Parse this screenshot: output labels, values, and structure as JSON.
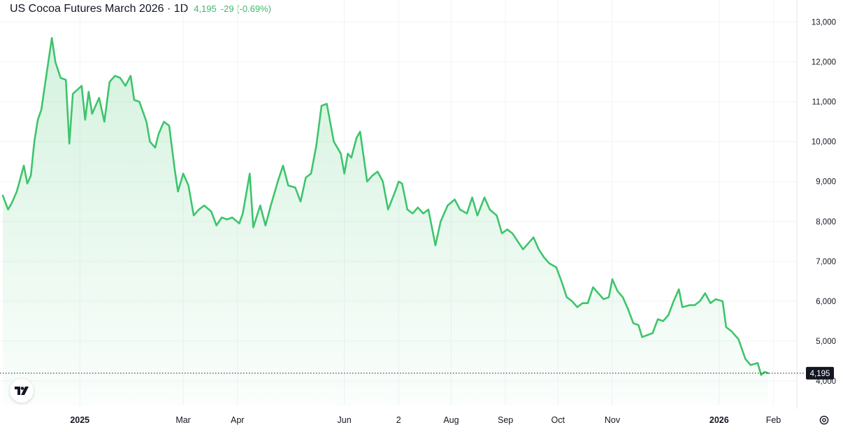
{
  "header": {
    "title": "US Cocoa Futures March 2026 · 1D",
    "price": "4,195",
    "change": "-29 (-0.69%)"
  },
  "colors": {
    "line": "#3dc56b",
    "text": "#131722",
    "grid": "#f0f3fa",
    "last_label_bg": "#131722"
  },
  "icons": {
    "logo": "tradingview-logo-icon",
    "settings": "gear-icon"
  },
  "chart_data": {
    "type": "area",
    "title": "US Cocoa Futures March 2026 · 1D",
    "xlabel": "",
    "ylabel": "",
    "ylim": [
      3900,
      13200
    ],
    "y_ticks": [
      "13,000",
      "12,000",
      "11,000",
      "10,000",
      "9,000",
      "8,000",
      "7,000",
      "6,000",
      "5,000",
      "4,000"
    ],
    "y_tick_values": [
      13000,
      12000,
      11000,
      10000,
      9000,
      8000,
      7000,
      6000,
      5000,
      4000
    ],
    "x_ticks": [
      {
        "label": "2025",
        "date": "2025-01-01",
        "bold": true
      },
      {
        "label": "Mar",
        "date": "2025-03-01",
        "bold": false
      },
      {
        "label": "Apr",
        "date": "2025-04-01",
        "bold": false
      },
      {
        "label": "Jun",
        "date": "2025-06-01",
        "bold": false
      },
      {
        "label": "2",
        "date": "2025-07-02",
        "bold": false
      },
      {
        "label": "Aug",
        "date": "2025-08-01",
        "bold": false
      },
      {
        "label": "Sep",
        "date": "2025-09-01",
        "bold": false
      },
      {
        "label": "Oct",
        "date": "2025-10-01",
        "bold": false
      },
      {
        "label": "Nov",
        "date": "2025-11-01",
        "bold": false
      },
      {
        "label": "2026",
        "date": "2026-01-01",
        "bold": true
      },
      {
        "label": "Feb",
        "date": "2026-02-01",
        "bold": false
      }
    ],
    "x_range": [
      "2024-11-18",
      "2026-02-07"
    ],
    "last_value": 4195,
    "last_value_label": "4,195",
    "grid": true,
    "series": [
      {
        "name": "",
        "points": [
          [
            "2024-11-18",
            8650
          ],
          [
            "2024-11-21",
            8300
          ],
          [
            "2024-11-23",
            8450
          ],
          [
            "2024-11-26",
            8750
          ],
          [
            "2024-11-30",
            9400
          ],
          [
            "2024-12-02",
            8950
          ],
          [
            "2024-12-04",
            9150
          ],
          [
            "2024-12-06",
            10000
          ],
          [
            "2024-12-08",
            10550
          ],
          [
            "2024-12-10",
            10800
          ],
          [
            "2024-12-13",
            11700
          ],
          [
            "2024-12-16",
            12600
          ],
          [
            "2024-12-18",
            12000
          ],
          [
            "2024-12-21",
            11600
          ],
          [
            "2024-12-24",
            11550
          ],
          [
            "2024-12-26",
            9950
          ],
          [
            "2024-12-28",
            11200
          ],
          [
            "2025-01-02",
            11400
          ],
          [
            "2025-01-04",
            10550
          ],
          [
            "2025-01-06",
            11250
          ],
          [
            "2025-01-08",
            10700
          ],
          [
            "2025-01-12",
            11100
          ],
          [
            "2025-01-15",
            10500
          ],
          [
            "2025-01-18",
            11500
          ],
          [
            "2025-01-21",
            11650
          ],
          [
            "2025-01-24",
            11600
          ],
          [
            "2025-01-27",
            11400
          ],
          [
            "2025-01-30",
            11650
          ],
          [
            "2025-02-01",
            11050
          ],
          [
            "2025-02-04",
            11000
          ],
          [
            "2025-02-08",
            10500
          ],
          [
            "2025-02-10",
            10000
          ],
          [
            "2025-02-13",
            9850
          ],
          [
            "2025-02-15",
            10200
          ],
          [
            "2025-02-18",
            10500
          ],
          [
            "2025-02-21",
            10400
          ],
          [
            "2025-02-24",
            9350
          ],
          [
            "2025-02-26",
            8750
          ],
          [
            "2025-03-01",
            9200
          ],
          [
            "2025-03-04",
            8900
          ],
          [
            "2025-03-07",
            8150
          ],
          [
            "2025-03-10",
            8300
          ],
          [
            "2025-03-13",
            8400
          ],
          [
            "2025-03-17",
            8250
          ],
          [
            "2025-03-20",
            7900
          ],
          [
            "2025-03-23",
            8100
          ],
          [
            "2025-03-26",
            8050
          ],
          [
            "2025-03-29",
            8100
          ],
          [
            "2025-04-02",
            7950
          ],
          [
            "2025-04-04",
            8200
          ],
          [
            "2025-04-07",
            8950
          ],
          [
            "2025-04-08",
            9200
          ],
          [
            "2025-04-10",
            7850
          ],
          [
            "2025-04-14",
            8400
          ],
          [
            "2025-04-17",
            7900
          ],
          [
            "2025-04-20",
            8400
          ],
          [
            "2025-04-24",
            9000
          ],
          [
            "2025-04-27",
            9400
          ],
          [
            "2025-04-30",
            8900
          ],
          [
            "2025-05-04",
            8850
          ],
          [
            "2025-05-07",
            8500
          ],
          [
            "2025-05-10",
            9100
          ],
          [
            "2025-05-13",
            9200
          ],
          [
            "2025-05-16",
            9900
          ],
          [
            "2025-05-19",
            10900
          ],
          [
            "2025-05-22",
            10950
          ],
          [
            "2025-05-26",
            10000
          ],
          [
            "2025-05-30",
            9700
          ],
          [
            "2025-06-01",
            9200
          ],
          [
            "2025-06-03",
            9700
          ],
          [
            "2025-06-05",
            9600
          ],
          [
            "2025-06-08",
            10100
          ],
          [
            "2025-06-10",
            10250
          ],
          [
            "2025-06-14",
            9000
          ],
          [
            "2025-06-17",
            9150
          ],
          [
            "2025-06-20",
            9250
          ],
          [
            "2025-06-23",
            9000
          ],
          [
            "2025-06-26",
            8300
          ],
          [
            "2025-06-30",
            8750
          ],
          [
            "2025-07-02",
            9000
          ],
          [
            "2025-07-04",
            8950
          ],
          [
            "2025-07-07",
            8300
          ],
          [
            "2025-07-10",
            8200
          ],
          [
            "2025-07-13",
            8350
          ],
          [
            "2025-07-16",
            8200
          ],
          [
            "2025-07-19",
            8300
          ],
          [
            "2025-07-23",
            7400
          ],
          [
            "2025-07-26",
            8000
          ],
          [
            "2025-07-30",
            8400
          ],
          [
            "2025-08-03",
            8550
          ],
          [
            "2025-08-06",
            8300
          ],
          [
            "2025-08-10",
            8200
          ],
          [
            "2025-08-13",
            8600
          ],
          [
            "2025-08-16",
            8150
          ],
          [
            "2025-08-20",
            8600
          ],
          [
            "2025-08-23",
            8300
          ],
          [
            "2025-08-27",
            8150
          ],
          [
            "2025-08-30",
            7700
          ],
          [
            "2025-09-02",
            7800
          ],
          [
            "2025-09-05",
            7700
          ],
          [
            "2025-09-08",
            7500
          ],
          [
            "2025-09-11",
            7300
          ],
          [
            "2025-09-14",
            7450
          ],
          [
            "2025-09-17",
            7600
          ],
          [
            "2025-09-20",
            7300
          ],
          [
            "2025-09-23",
            7100
          ],
          [
            "2025-09-26",
            6950
          ],
          [
            "2025-09-30",
            6850
          ],
          [
            "2025-10-03",
            6500
          ],
          [
            "2025-10-06",
            6100
          ],
          [
            "2025-10-09",
            6000
          ],
          [
            "2025-10-12",
            5850
          ],
          [
            "2025-10-15",
            5950
          ],
          [
            "2025-10-18",
            5950
          ],
          [
            "2025-10-21",
            6350
          ],
          [
            "2025-10-24",
            6200
          ],
          [
            "2025-10-27",
            6050
          ],
          [
            "2025-10-30",
            6100
          ],
          [
            "2025-11-01",
            6550
          ],
          [
            "2025-11-04",
            6250
          ],
          [
            "2025-11-07",
            6100
          ],
          [
            "2025-11-10",
            5800
          ],
          [
            "2025-11-13",
            5450
          ],
          [
            "2025-11-16",
            5400
          ],
          [
            "2025-11-18",
            5100
          ],
          [
            "2025-11-21",
            5150
          ],
          [
            "2025-11-24",
            5200
          ],
          [
            "2025-11-27",
            5550
          ],
          [
            "2025-11-30",
            5500
          ],
          [
            "2025-12-03",
            5650
          ],
          [
            "2025-12-06",
            6000
          ],
          [
            "2025-12-09",
            6300
          ],
          [
            "2025-12-11",
            5850
          ],
          [
            "2025-12-15",
            5900
          ],
          [
            "2025-12-18",
            5900
          ],
          [
            "2025-12-21",
            6000
          ],
          [
            "2025-12-24",
            6200
          ],
          [
            "2025-12-27",
            5950
          ],
          [
            "2025-12-30",
            6050
          ],
          [
            "2026-01-03",
            6000
          ],
          [
            "2026-01-05",
            5350
          ],
          [
            "2026-01-08",
            5250
          ],
          [
            "2026-01-12",
            5050
          ],
          [
            "2026-01-16",
            4550
          ],
          [
            "2026-01-19",
            4400
          ],
          [
            "2026-01-23",
            4450
          ],
          [
            "2026-01-25",
            4150
          ],
          [
            "2026-01-27",
            4230
          ],
          [
            "2026-01-29",
            4195
          ]
        ]
      }
    ]
  }
}
